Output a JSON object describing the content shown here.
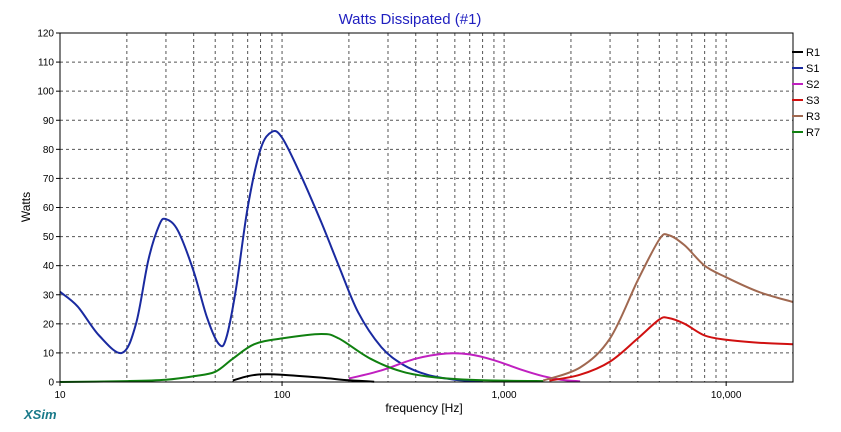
{
  "chart_data": {
    "type": "line",
    "title": "Watts Dissipated (#1)",
    "xlabel": "frequency [Hz]",
    "ylabel": "Watts",
    "x_scale": "log",
    "xlim": [
      10,
      20000
    ],
    "ylim": [
      0,
      120
    ],
    "yticks": [
      0,
      10,
      20,
      30,
      40,
      50,
      60,
      70,
      80,
      90,
      100,
      110,
      120
    ],
    "xticks": [
      10,
      100,
      1000,
      10000
    ],
    "xtick_labels": [
      "10",
      "100",
      "1,000",
      "10,000"
    ],
    "grid": true,
    "legend_position": "right",
    "series": [
      {
        "name": "R1",
        "color": "#000000",
        "points": [
          [
            60,
            0.5
          ],
          [
            70,
            2
          ],
          [
            80,
            2.6
          ],
          [
            100,
            2.5
          ],
          [
            150,
            1.5
          ],
          [
            200,
            0.6
          ],
          [
            260,
            0.1
          ]
        ]
      },
      {
        "name": "S1",
        "color": "#1a2aa0",
        "points": [
          [
            10,
            31
          ],
          [
            12,
            26
          ],
          [
            15,
            16
          ],
          [
            19,
            10
          ],
          [
            22,
            20
          ],
          [
            25,
            42
          ],
          [
            28,
            54
          ],
          [
            30,
            56
          ],
          [
            34,
            52
          ],
          [
            40,
            38
          ],
          [
            46,
            22
          ],
          [
            52,
            13
          ],
          [
            56,
            15
          ],
          [
            62,
            32
          ],
          [
            70,
            60
          ],
          [
            80,
            80
          ],
          [
            90,
            86
          ],
          [
            100,
            84
          ],
          [
            120,
            72
          ],
          [
            150,
            55
          ],
          [
            180,
            40
          ],
          [
            220,
            24
          ],
          [
            280,
            12
          ],
          [
            350,
            6
          ],
          [
            450,
            2.5
          ],
          [
            600,
            0.8
          ],
          [
            800,
            0.2
          ]
        ]
      },
      {
        "name": "S2",
        "color": "#c020c0",
        "points": [
          [
            200,
            1.2
          ],
          [
            280,
            4
          ],
          [
            400,
            8
          ],
          [
            550,
            9.8
          ],
          [
            700,
            9.5
          ],
          [
            900,
            7.5
          ],
          [
            1200,
            4.2
          ],
          [
            1500,
            2
          ],
          [
            1800,
            0.8
          ],
          [
            2200,
            0.2
          ]
        ]
      },
      {
        "name": "S3",
        "color": "#d01010",
        "points": [
          [
            1600,
            0.5
          ],
          [
            2200,
            2.5
          ],
          [
            3000,
            7
          ],
          [
            4000,
            15
          ],
          [
            5000,
            21.5
          ],
          [
            5500,
            22
          ],
          [
            6500,
            20
          ],
          [
            8000,
            16
          ],
          [
            10000,
            14.5
          ],
          [
            14000,
            13.5
          ],
          [
            20000,
            13
          ]
        ]
      },
      {
        "name": "R3",
        "color": "#a06850",
        "points": [
          [
            1500,
            0.5
          ],
          [
            2200,
            5
          ],
          [
            3000,
            15
          ],
          [
            4000,
            35
          ],
          [
            5000,
            49
          ],
          [
            5500,
            50.5
          ],
          [
            6500,
            47
          ],
          [
            8000,
            40
          ],
          [
            10000,
            36
          ],
          [
            14000,
            31
          ],
          [
            20000,
            27.5
          ]
        ]
      },
      {
        "name": "R7",
        "color": "#108010",
        "points": [
          [
            10,
            0
          ],
          [
            20,
            0.3
          ],
          [
            30,
            0.8
          ],
          [
            40,
            2
          ],
          [
            50,
            3.5
          ],
          [
            60,
            8
          ],
          [
            75,
            13
          ],
          [
            100,
            15
          ],
          [
            150,
            16.5
          ],
          [
            180,
            15
          ],
          [
            250,
            8
          ],
          [
            350,
            3.5
          ],
          [
            500,
            1.5
          ],
          [
            800,
            0.6
          ],
          [
            1500,
            0.3
          ]
        ]
      }
    ]
  },
  "brand": "XSim"
}
